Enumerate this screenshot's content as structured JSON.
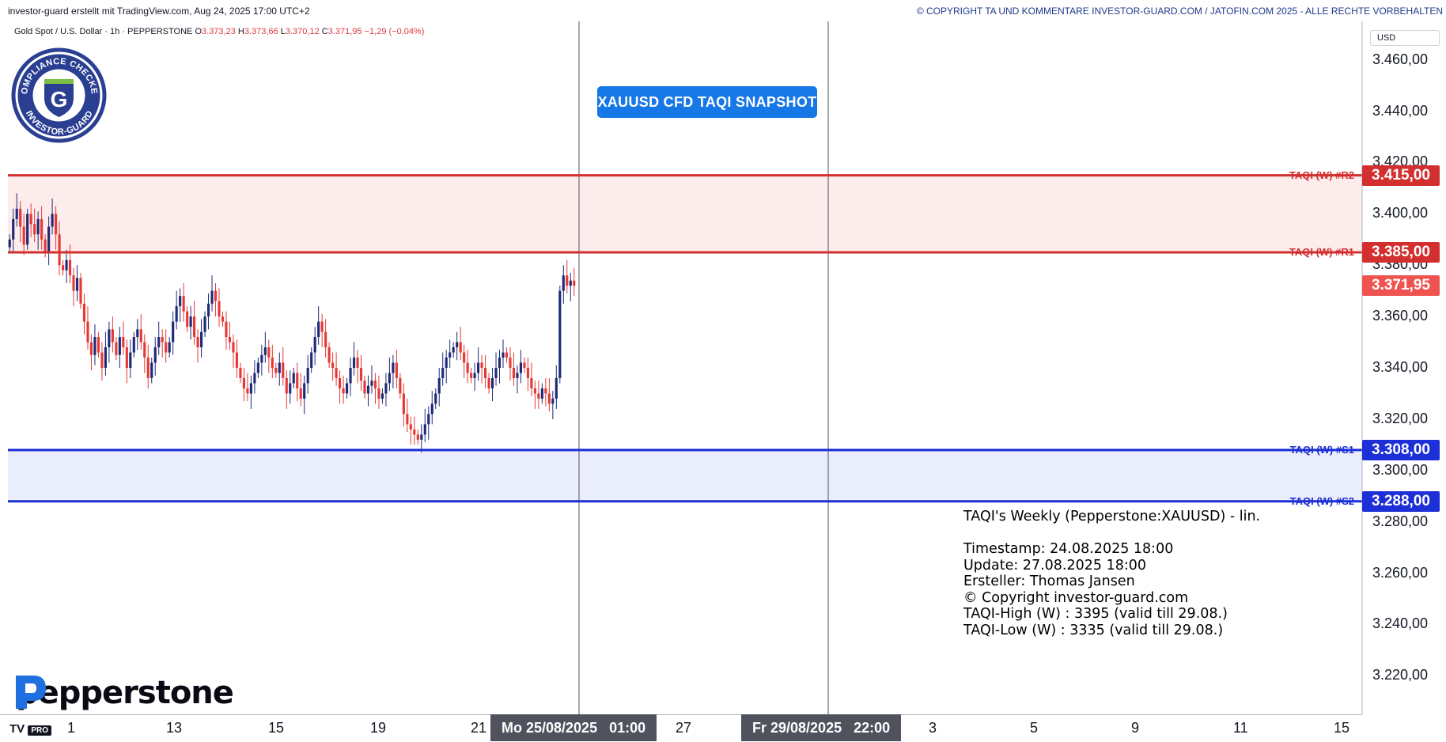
{
  "header": {
    "left_text": "investor-guard erstellt mit TradingView.com, Aug 24, 2025 17:00 UTC+2",
    "right_text": "© COPYRIGHT TA UND KOMMENTARE INVESTOR-GUARD.COM / JATOFIN.COM 2025 - ALLE RECHTE VORBEHALTEN"
  },
  "legend": {
    "symbol": "Gold Spot / U.S. Dollar · 1h · PEPPERSTONE",
    "o_label": "O",
    "o": "3.373,23",
    "h_label": "H",
    "h": "3.373,66",
    "l_label": "L",
    "l": "3.370,12",
    "c_label": "C",
    "c": "3.371,95",
    "change": "−1,29 (−0,04%)"
  },
  "badge": {
    "top_text": "COMPLIANCE CHECKED",
    "bottom_text": "INVESTOR-GUARD",
    "letter": "G"
  },
  "snapshot_button": "XAUUSD CFD TAQI SNAPSHOT",
  "info_text": {
    "line1": "TAQI's Weekly (Pepperstone:XAUUSD) - lin.",
    "line2": "",
    "line3": "Timestamp: 24.08.2025 18:00",
    "line4": "Update: 27.08.2025 18:00",
    "line5": "Ersteller: Thomas Jansen",
    "line6": "© Copyright investor-guard.com",
    "line7": "TAQI-High (W) : 3395 (valid till 29.08.)",
    "line8": "TAQI-Low (W) : 3335 (valid till 29.08.)"
  },
  "brand": {
    "name": "pepperstone",
    "tv_logo": "TV",
    "tv_pro": "PRO"
  },
  "colors": {
    "up": "#26a69a",
    "down": "#e53935",
    "candle_up": "#1e2a78",
    "candle_down": "#e53935",
    "resistance": "#d32f2f",
    "support": "#1d2fd6",
    "resistance_zone": "#fdecec",
    "support_zone": "#eaedfb",
    "price_tag": "#ef5350",
    "accent": "#1677e6"
  },
  "chart_data": {
    "type": "candlestick",
    "title": "",
    "xlabel": "",
    "ylabel": "",
    "currency": "USD",
    "ylim": [
      3205,
      3475
    ],
    "y_ticks": [
      "3.460,00",
      "3.440,00",
      "3.420,00",
      "3.400,00",
      "3.380,00",
      "3.360,00",
      "3.340,00",
      "3.320,00",
      "3.300,00",
      "3.280,00",
      "3.260,00",
      "3.240,00",
      "3.220,00"
    ],
    "y_tick_values": [
      3460,
      3440,
      3420,
      3400,
      3380,
      3360,
      3340,
      3320,
      3300,
      3280,
      3260,
      3240,
      3220
    ],
    "x_ticks": [
      "1",
      "13",
      "15",
      "19",
      "21",
      "27",
      "3",
      "5",
      "9",
      "11",
      "15"
    ],
    "crosshair_labels": [
      {
        "date": "Mo 25/08/2025",
        "time": "01:00"
      },
      {
        "date": "Fr 29/08/2025",
        "time": "22:00"
      }
    ],
    "levels": [
      {
        "name": "TAQI (W) #R2",
        "value": 3415,
        "label": "3.415,00",
        "kind": "resistance"
      },
      {
        "name": "TAQI (W) #R1",
        "value": 3385,
        "label": "3.385,00",
        "kind": "resistance"
      },
      {
        "name": "TAQI (W) #S1",
        "value": 3308,
        "label": "3.308,00",
        "kind": "support"
      },
      {
        "name": "TAQI (W) #S2",
        "value": 3288,
        "label": "3.288,00",
        "kind": "support"
      }
    ],
    "last_price": {
      "value": 3371.95,
      "label": "3.371,95"
    },
    "close_path": [
      3390,
      3398,
      3402,
      3395,
      3388,
      3400,
      3396,
      3392,
      3398,
      3390,
      3385,
      3395,
      3400,
      3392,
      3380,
      3378,
      3382,
      3376,
      3370,
      3375,
      3365,
      3358,
      3350,
      3345,
      3352,
      3346,
      3340,
      3348,
      3355,
      3350,
      3345,
      3352,
      3348,
      3340,
      3346,
      3352,
      3355,
      3350,
      3344,
      3336,
      3342,
      3348,
      3352,
      3350,
      3346,
      3350,
      3358,
      3364,
      3368,
      3362,
      3356,
      3360,
      3352,
      3348,
      3354,
      3360,
      3365,
      3370,
      3366,
      3360,
      3358,
      3352,
      3350,
      3346,
      3340,
      3336,
      3332,
      3330,
      3334,
      3338,
      3342,
      3345,
      3348,
      3344,
      3340,
      3338,
      3342,
      3336,
      3330,
      3334,
      3338,
      3332,
      3328,
      3334,
      3340,
      3346,
      3352,
      3358,
      3354,
      3348,
      3342,
      3340,
      3336,
      3332,
      3330,
      3334,
      3340,
      3344,
      3340,
      3335,
      3330,
      3333,
      3335,
      3332,
      3328,
      3330,
      3334,
      3338,
      3342,
      3336,
      3330,
      3322,
      3318,
      3316,
      3314,
      3312,
      3314,
      3318,
      3322,
      3326,
      3330,
      3336,
      3340,
      3344,
      3346,
      3348,
      3350,
      3346,
      3342,
      3338,
      3336,
      3338,
      3342,
      3340,
      3336,
      3332,
      3336,
      3340,
      3344,
      3346,
      3344,
      3340,
      3336,
      3338,
      3342,
      3340,
      3336,
      3332,
      3330,
      3328,
      3332,
      3330,
      3326,
      3328,
      3336,
      3370,
      3376,
      3372,
      3374,
      3372
    ],
    "plot_x_range": [
      10,
      728
    ]
  }
}
